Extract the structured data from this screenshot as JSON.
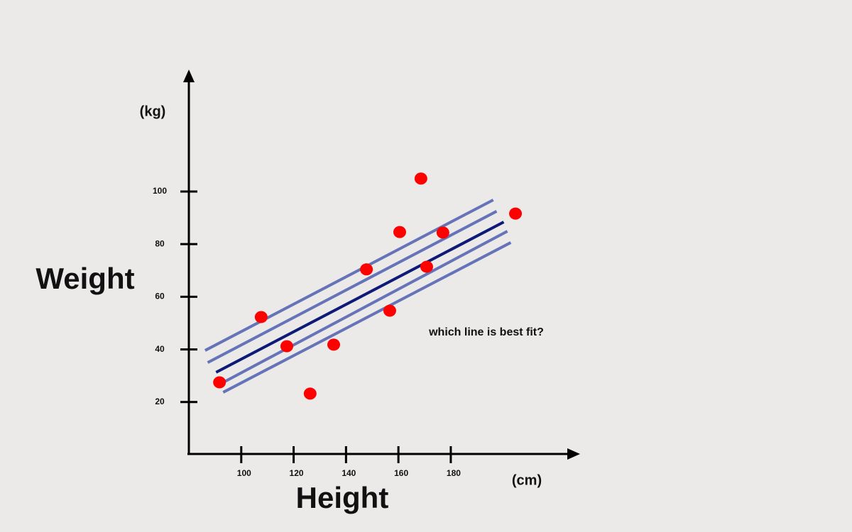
{
  "chart_data": {
    "type": "scatter",
    "y_unit": "(kg)",
    "y_label": "Weight",
    "x_label": "Height",
    "x_unit": "(cm)",
    "annotation": "which line is best fit?",
    "xlim": [
      80,
      228
    ],
    "ylim": [
      0,
      145
    ],
    "xticks": [
      100,
      120,
      140,
      160,
      180
    ],
    "yticks": [
      20,
      40,
      60,
      80,
      100
    ],
    "color": "#ff0000",
    "x": [
      91.7,
      107.6,
      117.4,
      126.3,
      135.3,
      147.8,
      156.7,
      160.5,
      168.6,
      170.8,
      177,
      204.7
    ],
    "y": [
      27.5,
      52.3,
      41.2,
      23.2,
      41.8,
      70.4,
      54.7,
      84.6,
      104.9,
      71.4,
      84.4,
      91.6
    ],
    "lines": [
      {
        "color": "#6574b8",
        "x": [
          86.2,
          196.2
        ],
        "y": [
          39.6,
          96.8
        ]
      },
      {
        "color": "#6574b8",
        "x": [
          87.2,
          197.5
        ],
        "y": [
          35.0,
          92.5
        ]
      },
      {
        "color": "#0d1a78",
        "x": [
          90.4,
          200.2
        ],
        "y": [
          31.3,
          88.4
        ]
      },
      {
        "color": "#6574b8",
        "x": [
          92.6,
          201.6
        ],
        "y": [
          27.2,
          84.9
        ]
      },
      {
        "color": "#6574b8",
        "x": [
          93.1,
          202.9
        ],
        "y": [
          23.7,
          80.6
        ]
      }
    ]
  }
}
